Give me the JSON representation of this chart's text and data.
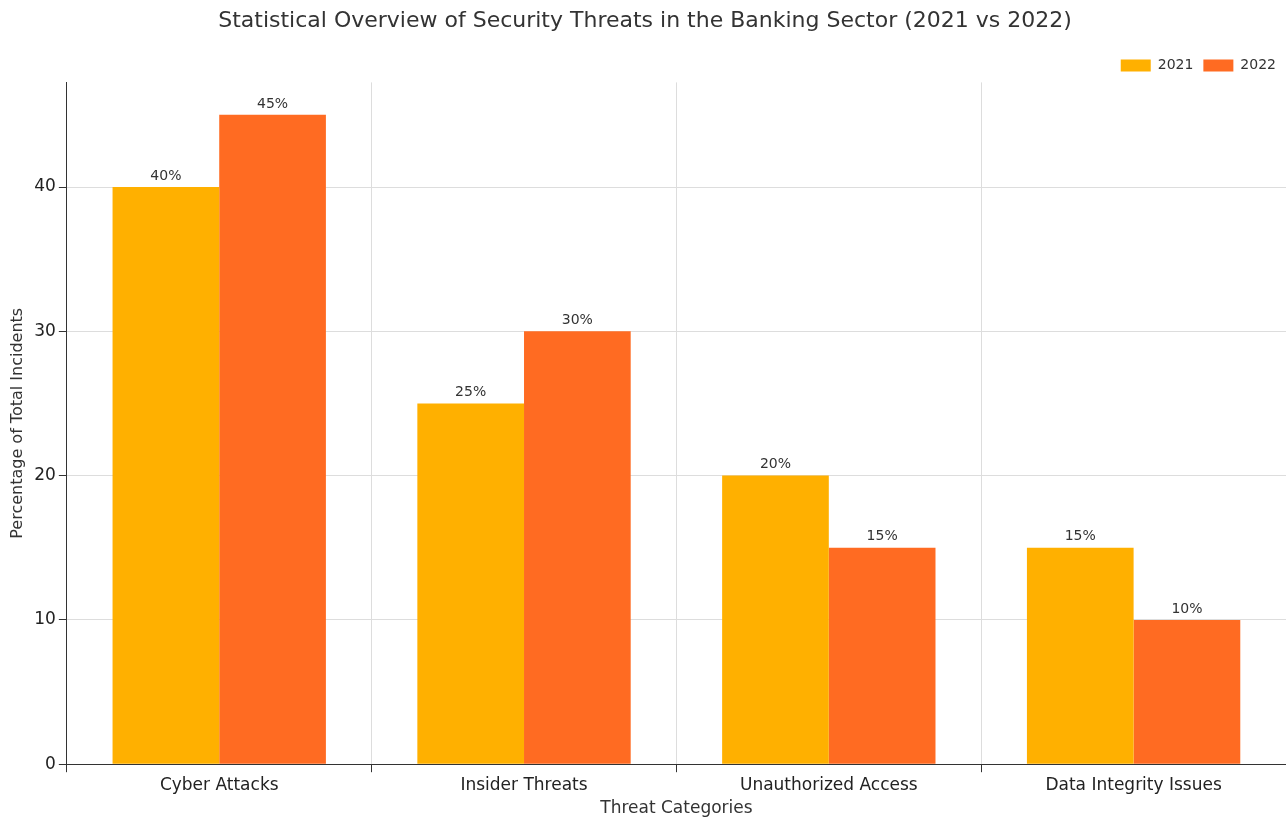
{
  "chart_data": {
    "type": "bar",
    "title": "Statistical Overview of Security Threats in the Banking Sector (2021 vs 2022)",
    "xlabel": "Threat Categories",
    "ylabel": "Percentage of Total Incidents",
    "categories": [
      "Cyber Attacks",
      "Insider Threats",
      "Unauthorized Access",
      "Data Integrity Issues"
    ],
    "series": [
      {
        "name": "2021",
        "color": "#ffb000",
        "values": [
          40,
          25,
          20,
          15
        ],
        "value_labels": [
          "40%",
          "25%",
          "20%",
          "15%"
        ]
      },
      {
        "name": "2022",
        "color": "#ff6b22",
        "values": [
          45,
          30,
          15,
          10
        ],
        "value_labels": [
          "45%",
          "30%",
          "15%",
          "10%"
        ]
      }
    ],
    "ylim": [
      0,
      47.25
    ],
    "yticks": [
      0,
      10,
      20,
      30,
      40
    ],
    "grid": true,
    "legend": "top right"
  }
}
